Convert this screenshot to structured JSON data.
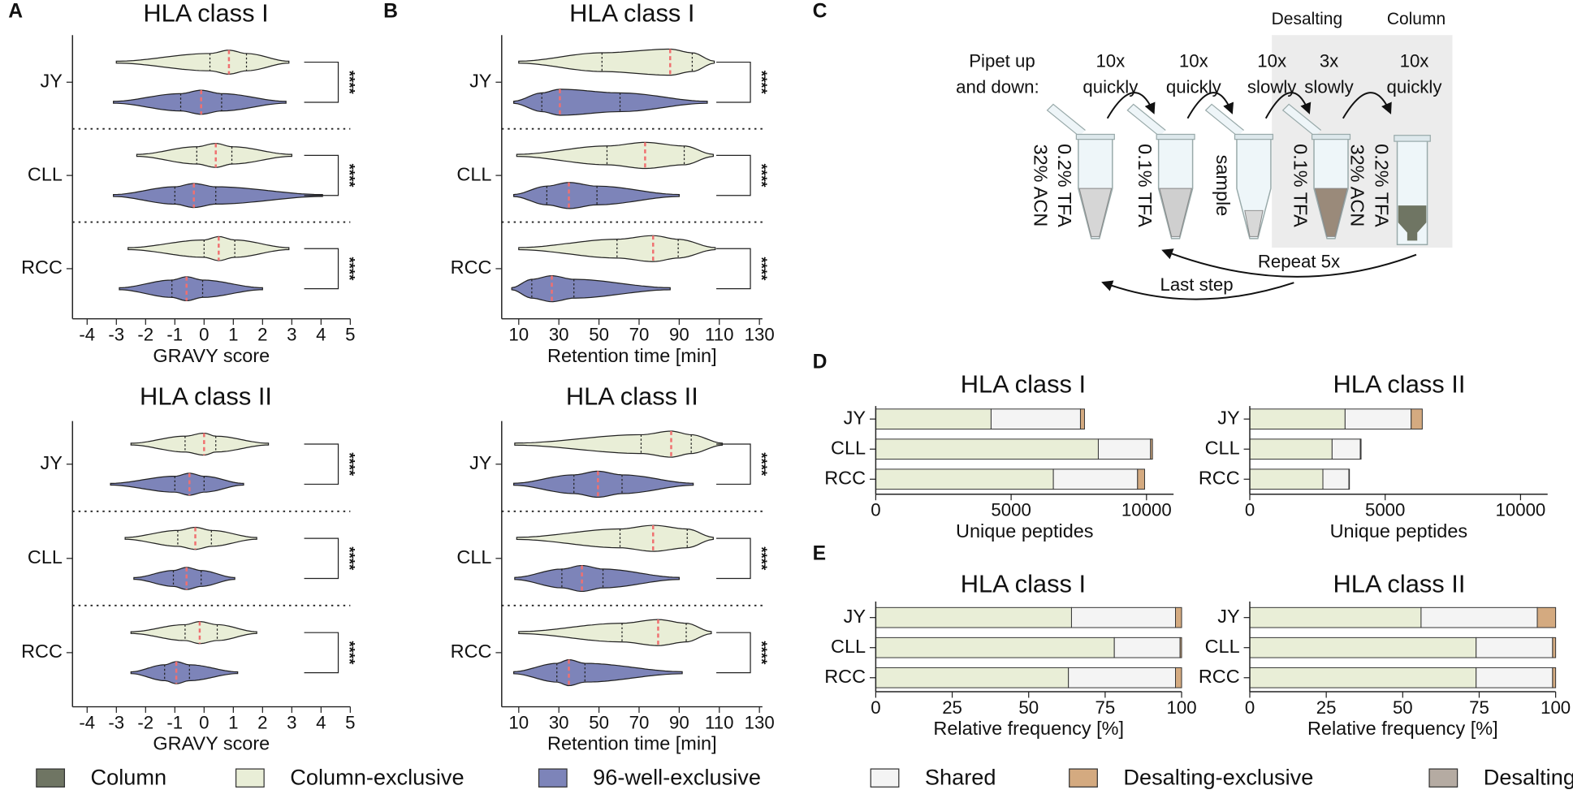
{
  "panel_labels": [
    "A",
    "B",
    "C",
    "D",
    "E"
  ],
  "chart_data": [
    {
      "type": "violin",
      "title": "HLA class I",
      "xlabel": "GRAVY score",
      "categories": [
        "JY",
        "CLL",
        "RCC"
      ],
      "xlim": [
        -4.5,
        5
      ],
      "xticks": [
        -4,
        -3,
        -2,
        -1,
        0,
        1,
        2,
        3,
        4,
        5
      ],
      "series": [
        {
          "color": "#e9eed7",
          "values": [
            [
              -3.0,
              0.2,
              0.85,
              1.45,
              2.9
            ],
            [
              -2.3,
              -0.25,
              0.4,
              0.95,
              3.0
            ],
            [
              -2.6,
              0,
              0.5,
              1.05,
              2.9
            ]
          ]
        },
        {
          "color": "#7d84b9",
          "values": [
            [
              -3.1,
              -0.8,
              -0.1,
              0.6,
              2.8
            ],
            [
              -3.1,
              -1.0,
              -0.35,
              0.4,
              4.05
            ],
            [
              -2.9,
              -1.1,
              -0.6,
              -0.05,
              2.0
            ]
          ]
        }
      ],
      "significance": [
        "****",
        "****",
        "****"
      ]
    },
    {
      "type": "violin",
      "title": "HLA class II",
      "xlabel": "GRAVY score",
      "categories": [
        "JY",
        "CLL",
        "RCC"
      ],
      "xlim": [
        -4.5,
        5
      ],
      "xticks": [
        -4,
        -3,
        -2,
        -1,
        0,
        1,
        2,
        3,
        4,
        5
      ],
      "series": [
        {
          "color": "#e9eed7",
          "values": [
            [
              -2.5,
              -0.65,
              0,
              0.4,
              2.2
            ],
            [
              -2.7,
              -0.9,
              -0.3,
              0.25,
              1.8
            ],
            [
              -2.5,
              -0.65,
              -0.15,
              0.45,
              1.8
            ]
          ]
        },
        {
          "color": "#7d84b9",
          "values": [
            [
              -3.2,
              -1.0,
              -0.5,
              0,
              1.35
            ],
            [
              -2.4,
              -1.05,
              -0.6,
              -0.1,
              1.05
            ],
            [
              -2.5,
              -1.35,
              -0.95,
              -0.5,
              1.15
            ]
          ]
        }
      ],
      "significance": [
        "****",
        "****",
        "****"
      ]
    },
    {
      "type": "violin",
      "title": "HLA class I",
      "xlabel": "Retention time [min]",
      "categories": [
        "JY",
        "CLL",
        "RCC"
      ],
      "xlim": [
        1.5,
        131.5
      ],
      "xticks": [
        10,
        30,
        50,
        70,
        90,
        110,
        130
      ],
      "series": [
        {
          "color": "#e9eed7",
          "values": [
            [
              10,
              51.5,
              85.5,
              96.5,
              107.5
            ],
            [
              9,
              54,
              73,
              92.5,
              107
            ],
            [
              10,
              59,
              77,
              89.5,
              108
            ]
          ]
        },
        {
          "color": "#7d84b9",
          "values": [
            [
              7.5,
              21.5,
              30.5,
              60.5,
              104
            ],
            [
              7.5,
              24,
              35,
              49,
              90
            ],
            [
              6.5,
              16.5,
              26.5,
              37.5,
              85.5
            ]
          ]
        }
      ],
      "significance": [
        "****",
        "****",
        "****"
      ]
    },
    {
      "type": "violin",
      "title": "HLA class II",
      "xlabel": "Retention time [min]",
      "categories": [
        "JY",
        "CLL",
        "RCC"
      ],
      "xlim": [
        1.5,
        131.5
      ],
      "xticks": [
        10,
        30,
        50,
        70,
        90,
        110,
        130
      ],
      "series": [
        {
          "color": "#e9eed7",
          "values": [
            [
              8,
              71,
              86,
              96,
              111.5
            ],
            [
              9,
              60.5,
              77,
              94,
              107
            ],
            [
              10,
              61.5,
              79.5,
              93.5,
              106
            ]
          ]
        },
        {
          "color": "#7d84b9",
          "values": [
            [
              7.5,
              37.5,
              49.5,
              61.5,
              97
            ],
            [
              8,
              31.5,
              41.5,
              52,
              90
            ],
            [
              7.5,
              29,
              35,
              43,
              91.5
            ]
          ]
        }
      ],
      "significance": [
        "****",
        "****",
        "****"
      ]
    },
    {
      "type": "stacked_barh",
      "title": "HLA class I",
      "xlabel": "Unique peptides",
      "categories": [
        "JY",
        "CLL",
        "RCC"
      ],
      "xlim": [
        0,
        11000
      ],
      "xticks": [
        0,
        5000,
        10000
      ],
      "series": [
        {
          "color": "#e9eed7",
          "values": [
            4260,
            8220,
            6560
          ]
        },
        {
          "color": "#f4f4f4",
          "values": [
            3300,
            1930,
            3110
          ]
        },
        {
          "color": "#d4aa80",
          "values": [
            150,
            70,
            260
          ]
        }
      ]
    },
    {
      "type": "stacked_barh",
      "title": "HLA class II",
      "xlabel": "Unique peptides",
      "categories": [
        "JY",
        "CLL",
        "RCC"
      ],
      "xlim": [
        0,
        11000
      ],
      "xticks": [
        0,
        5000,
        10000
      ],
      "series": [
        {
          "color": "#e9eed7",
          "values": [
            3520,
            3040,
            2700
          ]
        },
        {
          "color": "#f4f4f4",
          "values": [
            2440,
            1040,
            960
          ]
        },
        {
          "color": "#d4aa80",
          "values": [
            410,
            30,
            20
          ]
        }
      ]
    },
    {
      "type": "stacked_barh",
      "title": "HLA class I",
      "xlabel": "Relative frequency [%]",
      "categories": [
        "JY",
        "CLL",
        "RCC"
      ],
      "xlim": [
        0,
        100
      ],
      "xticks": [
        0,
        25,
        50,
        75,
        100
      ],
      "series": [
        {
          "color": "#e9eed7",
          "values": [
            64,
            78,
            63
          ]
        },
        {
          "color": "#f4f4f4",
          "values": [
            34,
            21.5,
            35
          ]
        },
        {
          "color": "#d4aa80",
          "values": [
            2,
            0.5,
            2
          ]
        }
      ]
    },
    {
      "type": "stacked_barh",
      "title": "HLA class II",
      "xlabel": "Relative frequency [%]",
      "categories": [
        "JY",
        "CLL",
        "RCC"
      ],
      "xlim": [
        0,
        100
      ],
      "xticks": [
        0,
        25,
        50,
        75,
        100
      ],
      "series": [
        {
          "color": "#e9eed7",
          "values": [
            56,
            74,
            74
          ]
        },
        {
          "color": "#f4f4f4",
          "values": [
            38,
            25,
            25
          ]
        },
        {
          "color": "#d4aa80",
          "values": [
            6,
            1,
            1
          ]
        }
      ]
    }
  ],
  "legend": [
    {
      "name": "Column",
      "color": "#6f7563"
    },
    {
      "name": "Column-exclusive",
      "color": "#e9eed7"
    },
    {
      "name": "96-well-exclusive",
      "color": "#7d84b9"
    },
    {
      "name": "Shared",
      "color": "#f4f4f4"
    },
    {
      "name": "Desalting-exclusive",
      "color": "#d4aa80"
    },
    {
      "name": "Desalting",
      "color": "#b5aba2"
    }
  ],
  "diagram": {
    "header": [
      "Desalting",
      "Column"
    ],
    "prompt": [
      "Pipet up",
      "and down:"
    ],
    "steps": [
      [
        "10x",
        "quickly"
      ],
      [
        "10x",
        "quickly"
      ],
      [
        "10x",
        "slowly"
      ],
      [
        "3x",
        "slowly"
      ],
      [
        "10x",
        "quickly"
      ]
    ],
    "tubes": [
      [
        "0.2% TFA",
        "32% ACN"
      ],
      [
        "0.1% TFA"
      ],
      [
        "sample"
      ],
      [
        "0.1% TFA"
      ],
      [
        "0.2% TFA",
        "32% ACN"
      ]
    ],
    "loops": [
      "Repeat 5x",
      "Last step"
    ]
  }
}
